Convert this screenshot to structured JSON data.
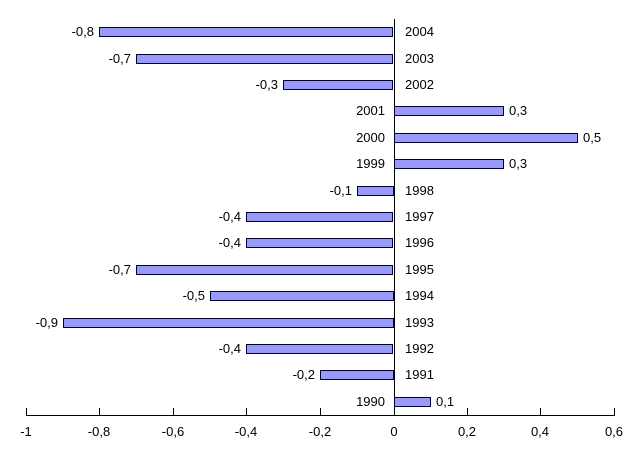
{
  "chart_data": {
    "type": "bar",
    "orientation": "horizontal",
    "title": "",
    "xlabel": "",
    "ylabel": "",
    "categories": [
      "2004",
      "2003",
      "2002",
      "2001",
      "2000",
      "1999",
      "1998",
      "1997",
      "1996",
      "1995",
      "1994",
      "1993",
      "1992",
      "1991",
      "1990"
    ],
    "values": [
      -0.8,
      -0.7,
      -0.3,
      0.3,
      0.5,
      0.3,
      -0.1,
      -0.4,
      -0.4,
      -0.7,
      -0.5,
      -0.9,
      -0.4,
      -0.2,
      0.1
    ],
    "value_labels": [
      "-0,8",
      "-0,7",
      "-0,3",
      "0,3",
      "0,5",
      "0,3",
      "-0,1",
      "-0,4",
      "-0,4",
      "-0,7",
      "-0,5",
      "-0,9",
      "-0,4",
      "-0,2",
      "0,1"
    ],
    "xlim": [
      -1,
      0.6
    ],
    "x_ticks": [
      -1,
      -0.8,
      -0.6,
      -0.4,
      -0.2,
      0,
      0.2,
      0.4,
      0.6
    ],
    "x_tick_labels": [
      "-1",
      "-0,8",
      "-0,6",
      "-0,4",
      "-0,2",
      "0",
      "0,2",
      "0,4",
      "0,6"
    ],
    "decimal_separator": ",",
    "grid": false,
    "legend": false,
    "colors": {
      "bar_fill": "#9999FA",
      "bar_border": "#000033",
      "axis": "#000000",
      "text": "#000000",
      "background": "#FFFFFF"
    }
  }
}
